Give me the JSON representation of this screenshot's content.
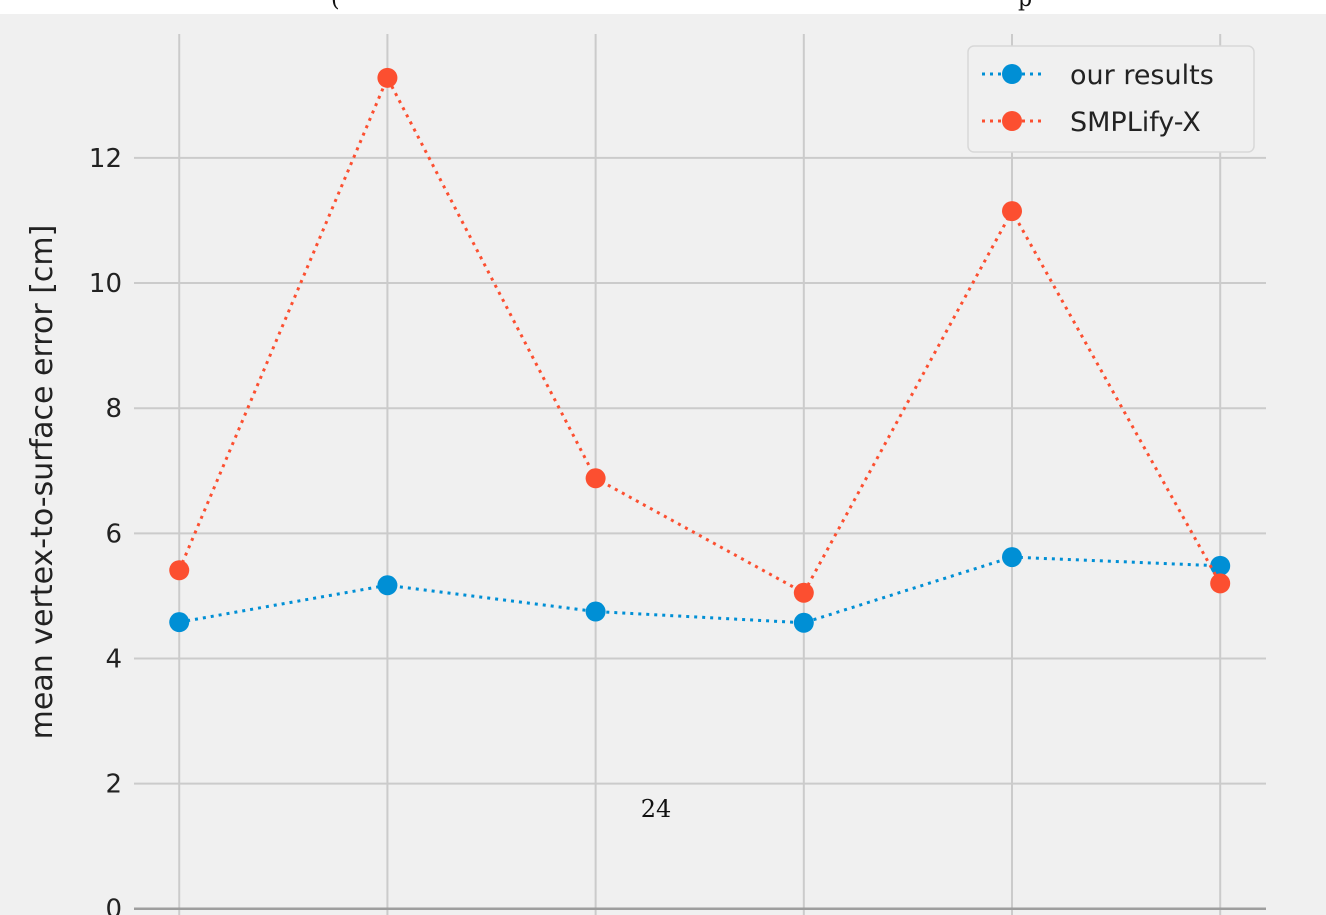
{
  "top_caption": {
    "left_fragment": "(",
    "right_fragment": "p"
  },
  "page_number": "24",
  "colors": {
    "background": "#f0f0f0",
    "grid": "#cbcbcb",
    "baseline": "#9e9e9e",
    "series_our_results": "#008fd5",
    "series_smplify_x": "#fc4f30"
  },
  "chart_data": {
    "type": "line",
    "title": "",
    "xlabel": "",
    "ylabel": "mean vertex-to-surface error [cm]",
    "x": [
      0,
      1,
      2,
      3,
      4,
      5
    ],
    "xlim": [
      -0.15,
      5.22
    ],
    "ylim": [
      -0.1,
      14.3
    ],
    "yticks": [
      0,
      2,
      4,
      6,
      8,
      10,
      12
    ],
    "grid": true,
    "legend_placement": "top-right",
    "series": [
      {
        "name": "our results",
        "color": "#008fd5",
        "values": [
          4.58,
          5.17,
          4.75,
          4.57,
          5.62,
          5.48
        ]
      },
      {
        "name": "SMPLify-X",
        "color": "#fc4f30",
        "values": [
          5.41,
          13.28,
          6.88,
          5.05,
          11.15,
          5.2
        ]
      }
    ]
  }
}
